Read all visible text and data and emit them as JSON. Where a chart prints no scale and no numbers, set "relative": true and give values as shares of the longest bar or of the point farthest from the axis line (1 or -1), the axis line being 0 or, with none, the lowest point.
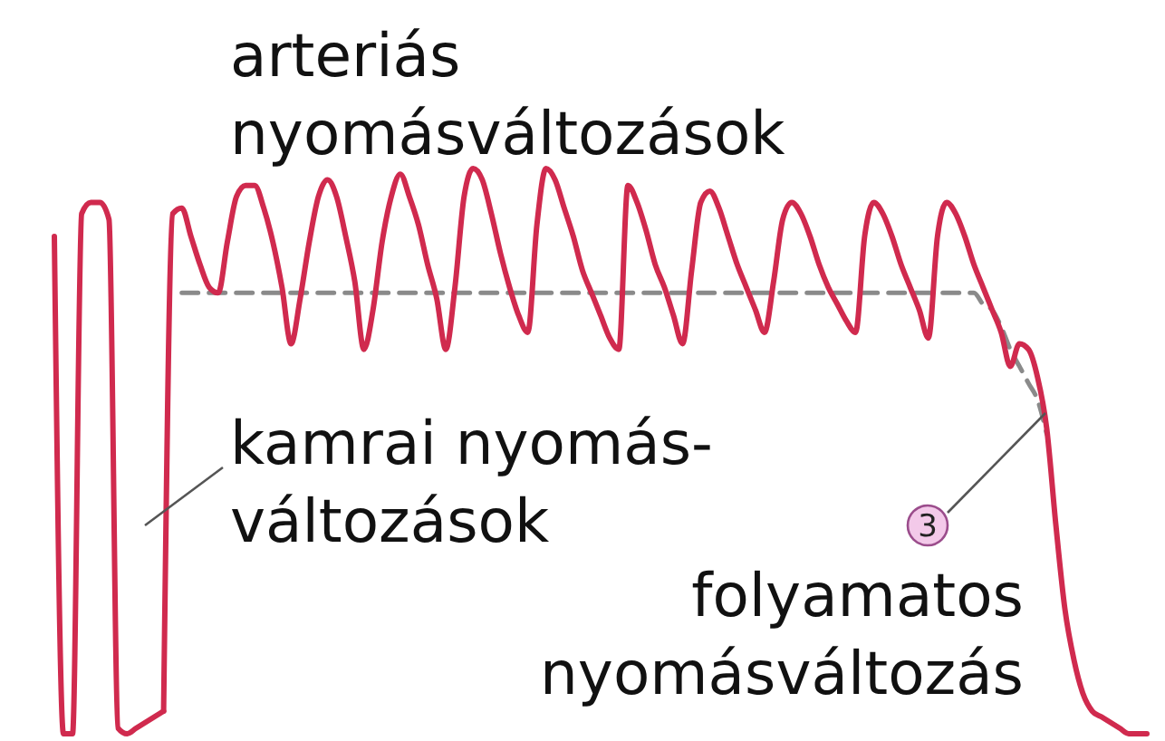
{
  "chart_data": {
    "type": "line",
    "relative": true,
    "categories": [
      null,
      null,
      null,
      null,
      null,
      null,
      null,
      null,
      null,
      null,
      null,
      null,
      null,
      null,
      null,
      null,
      null,
      null,
      null,
      null,
      null,
      null,
      null,
      null,
      null,
      null,
      null,
      null,
      null,
      null,
      null,
      null,
      null,
      null,
      null,
      null,
      null,
      null,
      null,
      null,
      null,
      null,
      null,
      null,
      null,
      null,
      null,
      null,
      null,
      null,
      null,
      null,
      null,
      null,
      null,
      null,
      null,
      null,
      null,
      null,
      null,
      null,
      null,
      null,
      null,
      null,
      null,
      null,
      null,
      null,
      null,
      null,
      null,
      null,
      null,
      null,
      null,
      null,
      null,
      null,
      null,
      null,
      null,
      null,
      null,
      null,
      null,
      null,
      null,
      null,
      null,
      null,
      null,
      null,
      null,
      null,
      null,
      null,
      null,
      null,
      null,
      null,
      null,
      null,
      null,
      null,
      null,
      null,
      null,
      null,
      null,
      null,
      null,
      null,
      null,
      null,
      null,
      null,
      null,
      null,
      null
    ],
    "series": [
      {
        "name": "kamrai nyomás-változások",
        "color": "#d02a4e",
        "values": [
          0.88,
          0,
          0,
          0.92,
          0.94,
          0.94,
          0.91,
          0.01,
          0,
          0.01,
          0.02,
          0.03,
          0.04,
          null,
          null,
          null,
          null,
          null,
          null,
          null,
          null,
          null,
          null,
          null,
          null,
          null,
          null,
          null,
          null,
          null,
          null,
          null,
          null,
          null,
          null,
          null,
          null,
          null,
          null,
          null,
          null,
          null,
          null,
          null,
          null,
          null,
          null,
          null,
          null,
          null,
          null,
          null,
          null,
          null,
          null,
          null,
          null,
          null,
          null,
          null,
          null,
          null,
          null,
          null,
          null,
          null,
          null,
          null,
          null,
          null,
          null,
          null,
          null,
          null,
          null,
          null,
          null,
          null,
          null,
          null,
          null,
          null,
          null,
          null,
          null,
          null,
          null,
          null,
          null,
          null,
          null,
          null,
          null,
          null,
          null,
          null,
          null,
          null,
          null,
          null,
          null,
          null,
          null,
          null,
          null,
          null,
          null,
          null,
          null,
          null,
          null,
          null,
          null,
          null,
          null,
          null,
          null,
          null,
          null,
          null,
          null
        ]
      },
      {
        "name": "arteriás nyomásváltozások",
        "color": "#d02a4e",
        "values": [
          null,
          null,
          null,
          null,
          null,
          null,
          null,
          null,
          null,
          null,
          null,
          null,
          0.04,
          0.92,
          0.93,
          0.88,
          0.83,
          0.79,
          0.78,
          0.87,
          0.95,
          0.97,
          0.97,
          0.93,
          0.87,
          0.79,
          0.69,
          0.77,
          0.87,
          0.95,
          0.98,
          0.95,
          0.88,
          0.8,
          0.68,
          0.75,
          0.87,
          0.95,
          0.99,
          0.95,
          0.9,
          0.83,
          0.77,
          0.68,
          0.79,
          0.95,
          1,
          0.98,
          0.92,
          0.85,
          0.79,
          0.74,
          0.71,
          0.9,
          1,
          0.98,
          0.93,
          0.88,
          0.82,
          0.78,
          0.74,
          0.7,
          0.68,
          0.97,
          0.94,
          0.89,
          0.83,
          0.79,
          0.74,
          0.69,
          0.82,
          0.94,
          0.96,
          0.93,
          0.88,
          0.83,
          0.79,
          0.75,
          0.71,
          0.8,
          0.91,
          0.94,
          0.92,
          0.88,
          0.83,
          0.79,
          0.76,
          0.73,
          0.71,
          0.88,
          0.94,
          0.92,
          0.88,
          0.83,
          0.79,
          0.75,
          0.7,
          0.88,
          0.94,
          0.92,
          0.88,
          0.83,
          0.79,
          0.75,
          0.71,
          0.65,
          0.69,
          0.68,
          0.63,
          0.54,
          0.37,
          0.22,
          0.13,
          0.07,
          0.04,
          0.03,
          0.02,
          0.01,
          0,
          0,
          0
        ]
      },
      {
        "name": "folyamatos nyomásváltozás",
        "color": "#8a8a8a",
        "line_style": "dashed",
        "values": [
          null,
          null,
          null,
          null,
          null,
          null,
          null,
          null,
          null,
          null,
          null,
          null,
          null,
          null,
          0.78,
          0.78,
          0.78,
          0.78,
          0.78,
          0.78,
          0.78,
          0.78,
          0.78,
          0.78,
          0.78,
          0.78,
          0.78,
          0.78,
          0.78,
          0.78,
          0.78,
          0.78,
          0.78,
          0.78,
          0.78,
          0.78,
          0.78,
          0.78,
          0.78,
          0.78,
          0.78,
          0.78,
          0.78,
          0.78,
          0.78,
          0.78,
          0.78,
          0.78,
          0.78,
          0.78,
          0.78,
          0.78,
          0.78,
          0.78,
          0.78,
          0.78,
          0.78,
          0.78,
          0.78,
          0.78,
          0.78,
          0.78,
          0.78,
          0.78,
          0.78,
          0.78,
          0.78,
          0.78,
          0.78,
          0.78,
          0.78,
          0.78,
          0.78,
          0.78,
          0.78,
          0.78,
          0.78,
          0.78,
          0.78,
          0.78,
          0.78,
          0.78,
          0.78,
          0.78,
          0.78,
          0.78,
          0.78,
          0.78,
          0.78,
          0.78,
          0.78,
          0.78,
          0.78,
          0.78,
          0.78,
          0.78,
          0.78,
          0.78,
          0.78,
          0.78,
          0.78,
          0.78,
          0.76,
          0.75,
          0.72,
          0.68,
          0.65,
          0.62,
          0.59,
          0.53,
          null,
          null,
          null,
          null,
          null,
          null,
          null,
          null,
          null,
          null,
          null
        ]
      }
    ],
    "annotations": [
      "3"
    ]
  }
}
